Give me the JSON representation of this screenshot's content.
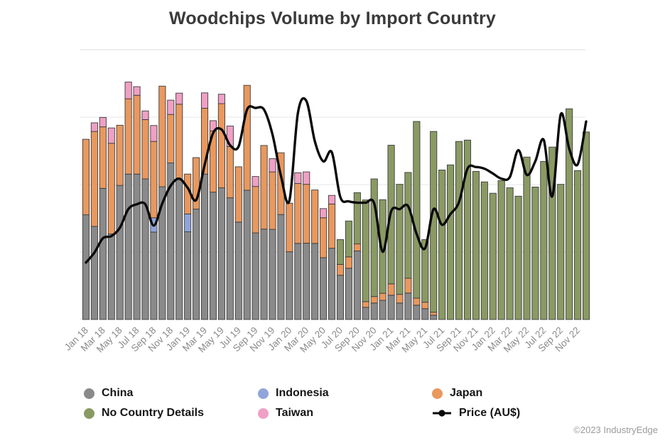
{
  "title": "Woodchips Volume by Import Country",
  "footer": "©2023 IndustryEdge",
  "legend": [
    {
      "label": "China",
      "color": "#8a8a8a",
      "marker": "circle"
    },
    {
      "label": "No Country Details",
      "color": "#8a9a63",
      "marker": "circle"
    },
    {
      "label": "Indonesia",
      "color": "#90a5d9",
      "marker": "circle"
    },
    {
      "label": "Taiwan",
      "color": "#f0a0c4",
      "marker": "circle"
    },
    {
      "label": "Japan",
      "color": "#e9985e",
      "marker": "circle"
    },
    {
      "label": "Price (AU$)",
      "color": "#0a0a0a",
      "marker": "line-dot"
    }
  ],
  "chart_data": {
    "type": "stacked-bar+line",
    "title": "Woodchips Volume by Import Country",
    "xlabel": "",
    "ylabel": "",
    "y_axis_unlabeled": true,
    "note": "No numeric y-axis shown in source; values are normalized 0-100 where 100 = top gridline",
    "ylim": [
      0,
      100
    ],
    "grid": true,
    "tick_every": 2,
    "months": [
      "Jan 18",
      "Feb 18",
      "Mar 18",
      "Apr 18",
      "May 18",
      "Jun 18",
      "Jul 18",
      "Aug 18",
      "Sep 18",
      "Oct 18",
      "Nov 18",
      "Dec 18",
      "Jan 19",
      "Feb 19",
      "Mar 19",
      "Apr 19",
      "May 19",
      "Jun 19",
      "Jul 19",
      "Aug 19",
      "Sep 19",
      "Oct 19",
      "Nov 19",
      "Dec 19",
      "Jan 20",
      "Feb 20",
      "Mar 20",
      "Apr 20",
      "May 20",
      "Jun 20",
      "Jul 20",
      "Aug 20",
      "Sep 20",
      "Oct 20",
      "Nov 20",
      "Dec 20",
      "Jan 21",
      "Feb 21",
      "Mar 21",
      "Apr 21",
      "May 21",
      "Jun 21",
      "Jul 21",
      "Aug 21",
      "Sep 21",
      "Oct 21",
      "Nov 21",
      "Dec 21",
      "Jan 22",
      "Feb 22",
      "Mar 22",
      "Apr 22",
      "May 22",
      "Jun 22",
      "Jul 22",
      "Aug 22",
      "Sep 22",
      "Oct 22",
      "Nov 22",
      "Dec 22"
    ],
    "series": [
      {
        "name": "China",
        "color": "#8a8a8a",
        "values": [
          38.8,
          34.5,
          48.6,
          31.7,
          49.7,
          53.9,
          53.9,
          52.1,
          32.4,
          49.2,
          58,
          51.9,
          32.5,
          40.9,
          53.9,
          47.2,
          48.8,
          45.1,
          36.1,
          47.9,
          32.1,
          33.5,
          33.4,
          38.9,
          25.1,
          28.2,
          28.3,
          28.2,
          22.9,
          26.4,
          16.4,
          19,
          25.4,
          4.5,
          6.1,
          7.1,
          9,
          6.1,
          9.8,
          5.3,
          4,
          1.6,
          0,
          0,
          0,
          0,
          0,
          0,
          0,
          0,
          0,
          0,
          0,
          0,
          0,
          0,
          0,
          0,
          0,
          0
        ]
      },
      {
        "name": "Indonesia",
        "color": "#90a5d9",
        "values": [
          0,
          0,
          0,
          0,
          0,
          0,
          0,
          0,
          5.3,
          0,
          0,
          0,
          6.6,
          0,
          0,
          0,
          0,
          0,
          0,
          0,
          0,
          0,
          0,
          0,
          0,
          0,
          0,
          0,
          0,
          0,
          0,
          0,
          0,
          0,
          0,
          0,
          0,
          0,
          0,
          0,
          0,
          0,
          0,
          0,
          0,
          0,
          0,
          0,
          0,
          0,
          0,
          0,
          0,
          0,
          0,
          0,
          0,
          0,
          0,
          0
        ]
      },
      {
        "name": "Japan",
        "color": "#e9985e",
        "values": [
          28,
          35.2,
          22.8,
          33.6,
          22.3,
          27.9,
          29.2,
          22,
          28.3,
          37.3,
          18,
          27.9,
          14.8,
          19.1,
          24.4,
          22.7,
          31.2,
          19,
          20.5,
          38.9,
          17.2,
          31,
          21.3,
          22.9,
          18,
          22.2,
          21.8,
          19.8,
          14.8,
          16.4,
          4,
          4.2,
          2.6,
          2.1,
          2.4,
          2.6,
          4.2,
          3.2,
          5.5,
          2.6,
          2.4,
          1.1,
          0,
          0,
          0,
          0,
          0,
          0,
          0,
          0,
          0,
          0,
          0,
          0,
          0,
          0,
          0,
          0,
          0,
          0
        ]
      },
      {
        "name": "Taiwan",
        "color": "#f0a0c4",
        "values": [
          0,
          3.2,
          3.5,
          5.7,
          0,
          6.2,
          3.2,
          3.2,
          5.9,
          0,
          5.3,
          4.1,
          0,
          0,
          5.7,
          3.8,
          3.5,
          7.6,
          0,
          0,
          3.7,
          0,
          4.9,
          0,
          0,
          4,
          4.6,
          0,
          3.4,
          3.2,
          0,
          0,
          0,
          0,
          0,
          0,
          0,
          0,
          0,
          0,
          0,
          0,
          0,
          0,
          0,
          0,
          0,
          0,
          0,
          0,
          0,
          0,
          0,
          0,
          0,
          0,
          0,
          0,
          0,
          0
        ]
      },
      {
        "name": "No Country Details",
        "color": "#8a9a63",
        "values": [
          0,
          0,
          0,
          0,
          0,
          0,
          0,
          0,
          0,
          0,
          0,
          0,
          0,
          0,
          0,
          0,
          0,
          0,
          0,
          0,
          0,
          0,
          0,
          0,
          0,
          0,
          0,
          0,
          0,
          0,
          9.2,
          13.3,
          19,
          37.7,
          43.6,
          34.7,
          51.4,
          40.8,
          39.2,
          65.5,
          23.2,
          67,
          55.4,
          57.3,
          66,
          66.5,
          54.9,
          51,
          46.8,
          51.5,
          48.8,
          45.7,
          60.2,
          49.1,
          58.6,
          63.9,
          50.1,
          78.1,
          55.2,
          69.5
        ]
      }
    ],
    "price_line": {
      "name": "Price (AU$)",
      "color": "#0a0a0a",
      "values": [
        21.1,
        24.8,
        30.1,
        30.9,
        34,
        40.9,
        42.7,
        42.7,
        34.8,
        43,
        49.6,
        52.2,
        48.8,
        44.3,
        57.3,
        69.1,
        70.4,
        64.6,
        64.1,
        77.8,
        78.4,
        77.8,
        68.6,
        53.3,
        44.1,
        76.5,
        81,
        66,
        58.6,
        62,
        45.4,
        43.8,
        43.3,
        43.3,
        43,
        25.1,
        40.1,
        40.9,
        42,
        31.7,
        26.4,
        40.9,
        35.1,
        39.1,
        43.5,
        55.9,
        56.5,
        55.9,
        54.1,
        52.2,
        52.8,
        62.8,
        53.6,
        58.6,
        66.5,
        45.6,
        76,
        63.3,
        57.5,
        73.4
      ]
    }
  }
}
